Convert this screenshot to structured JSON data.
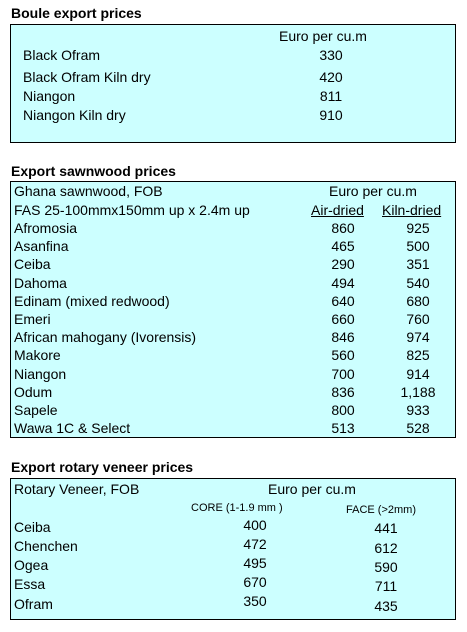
{
  "boule": {
    "title": "Boule export prices",
    "unit": "Euro per cu.m",
    "rows": [
      {
        "name": "Black Ofram",
        "price": "330"
      },
      {
        "name": "Black Ofram  Kiln dry",
        "price": "420"
      },
      {
        "name": "Niangon",
        "price": "811"
      },
      {
        "name": "Niangon Kiln dry",
        "price": "910"
      }
    ]
  },
  "sawnwood": {
    "title": "Export sawnwood prices",
    "header_left": "Ghana sawnwood, FOB",
    "unit": "Euro per cu.m",
    "spec": "FAS 25-100mmx150mm up x 2.4m up",
    "col1": "Air-dried",
    "col2": "Kiln-dried",
    "rows": [
      {
        "name": "Afromosia",
        "air": "860",
        "kiln": "925"
      },
      {
        "name": "Asanfina",
        "air": "465",
        "kiln": "500"
      },
      {
        "name": "Ceiba",
        "air": "290",
        "kiln": "351"
      },
      {
        "name": "Dahoma",
        "air": "494",
        "kiln": "540"
      },
      {
        "name": "Edinam (mixed redwood)",
        "air": "640",
        "kiln": "680"
      },
      {
        "name": "Emeri",
        "air": "660",
        "kiln": "760"
      },
      {
        "name": "African mahogany (Ivorensis)",
        "air": "846",
        "kiln": "974"
      },
      {
        "name": "Makore",
        "air": "560",
        "kiln": "825"
      },
      {
        "name": "Niangon",
        "air": "700",
        "kiln": "914"
      },
      {
        "name": "Odum",
        "air": "836",
        "kiln": "1,188"
      },
      {
        "name": "Sapele",
        "air": "800",
        "kiln": "933"
      },
      {
        "name": "Wawa 1C & Select",
        "air": "513",
        "kiln": "528"
      }
    ]
  },
  "veneer": {
    "title": "Export rotary veneer prices",
    "header_left": "Rotary Veneer,  FOB",
    "unit": "Euro  per cu.m",
    "col1": "CORE (1-1.9 mm )",
    "col2": "FACE (>2mm)",
    "rows": [
      {
        "name": "Ceiba",
        "core": "400",
        "face": "441"
      },
      {
        "name": "Chenchen",
        "core": "472",
        "face": "612"
      },
      {
        "name": "Ogea",
        "core": "495",
        "face": "590"
      },
      {
        "name": "Essa",
        "core": "670",
        "face": "711"
      },
      {
        "name": "Ofram",
        "core": "350",
        "face": "435"
      }
    ]
  },
  "colors": {
    "table_background": "#ccffff",
    "border": "#000000"
  }
}
